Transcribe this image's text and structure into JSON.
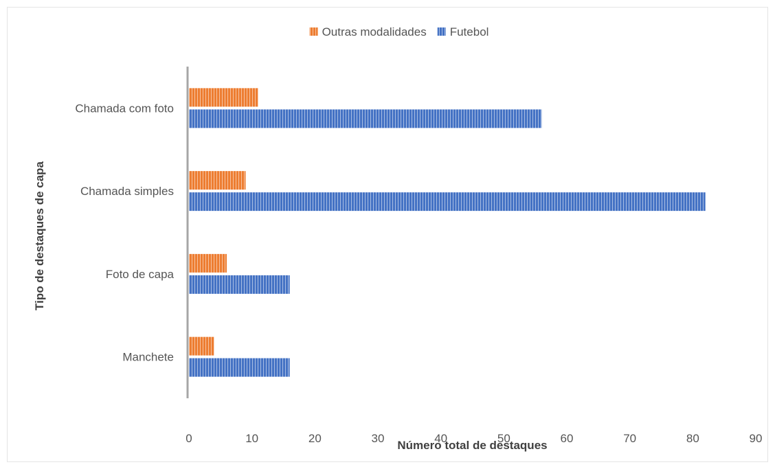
{
  "chart_data": {
    "type": "bar",
    "orientation": "horizontal",
    "categories": [
      "Chamada com foto",
      "Chamada simples",
      "Foto de capa",
      "Manchete"
    ],
    "series": [
      {
        "name": "Outras modalidades",
        "values": [
          11,
          9,
          6,
          4
        ],
        "color": "#ED7D31"
      },
      {
        "name": "Futebol",
        "values": [
          56,
          82,
          16,
          16
        ],
        "color": "#4472C4"
      }
    ],
    "xlabel": "Número total de destaques",
    "ylabel": "Tipo de destaques de capa",
    "xlim": [
      0,
      90
    ],
    "xticks": [
      0,
      10,
      20,
      30,
      40,
      50,
      60,
      70,
      80,
      90
    ],
    "legend_position": "top",
    "grid": false,
    "bar_pattern": "vertical-stripes"
  }
}
